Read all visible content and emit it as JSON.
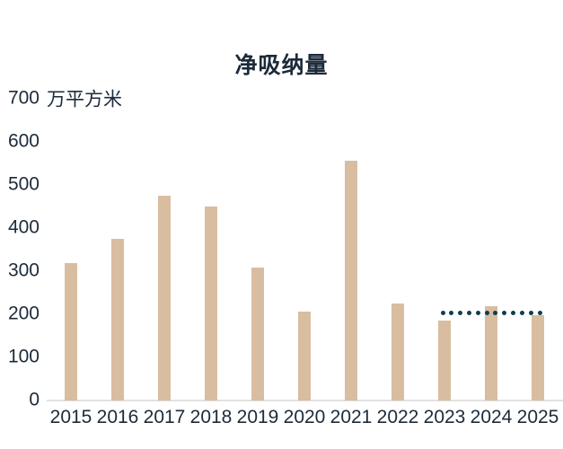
{
  "chart_data": {
    "type": "bar",
    "title": "净吸纳量",
    "unit_label": "万平方米",
    "categories": [
      "2015",
      "2016",
      "2017",
      "2018",
      "2019",
      "2020",
      "2021",
      "2022",
      "2023",
      "2024",
      "2025"
    ],
    "values": [
      318,
      375,
      476,
      450,
      308,
      206,
      556,
      224,
      185,
      219,
      198
    ],
    "ylabel": "万平方米",
    "xlabel": "",
    "ylim": [
      0,
      700
    ],
    "y_ticks": [
      0,
      100,
      200,
      300,
      400,
      500,
      600,
      700
    ],
    "grid": false,
    "legend": "none",
    "bar_color": "#d9bda0",
    "text_color": "#1c2a39",
    "axis_line_color": "#e2e2e2",
    "dotted_line": {
      "value": 204,
      "span_categories": [
        "2023",
        "2024",
        "2025"
      ],
      "color": "#113d4c",
      "style": "dotted"
    }
  }
}
